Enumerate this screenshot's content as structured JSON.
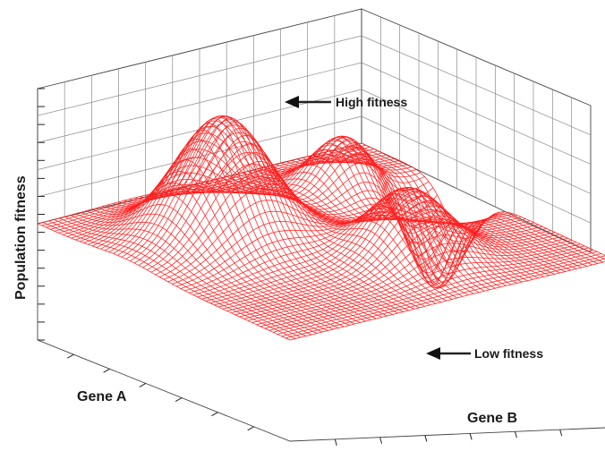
{
  "chart_data": {
    "type": "surface",
    "title": "",
    "xlabel": "Gene A",
    "ylabel": "Gene B",
    "zlabel": "Population fitness",
    "mesh_color": "#ff2020",
    "grid": true,
    "annotations": [
      {
        "text": "High fitness",
        "target": "peak"
      },
      {
        "text": "Low fitness",
        "target": "valley"
      }
    ],
    "features": [
      {
        "kind": "peak",
        "amp": 1.0,
        "a": 0.3,
        "b": 0.35,
        "sa": 0.12,
        "sb": 0.12
      },
      {
        "kind": "peak",
        "amp": 0.55,
        "a": 0.6,
        "b": 0.7,
        "sa": 0.1,
        "sb": 0.1
      },
      {
        "kind": "peak",
        "amp": 0.45,
        "a": 0.75,
        "b": 0.25,
        "sa": 0.08,
        "sb": 0.08
      },
      {
        "kind": "valley",
        "amp": -0.75,
        "a": 0.92,
        "b": 0.4,
        "sa": 0.07,
        "sb": 0.07
      }
    ]
  }
}
